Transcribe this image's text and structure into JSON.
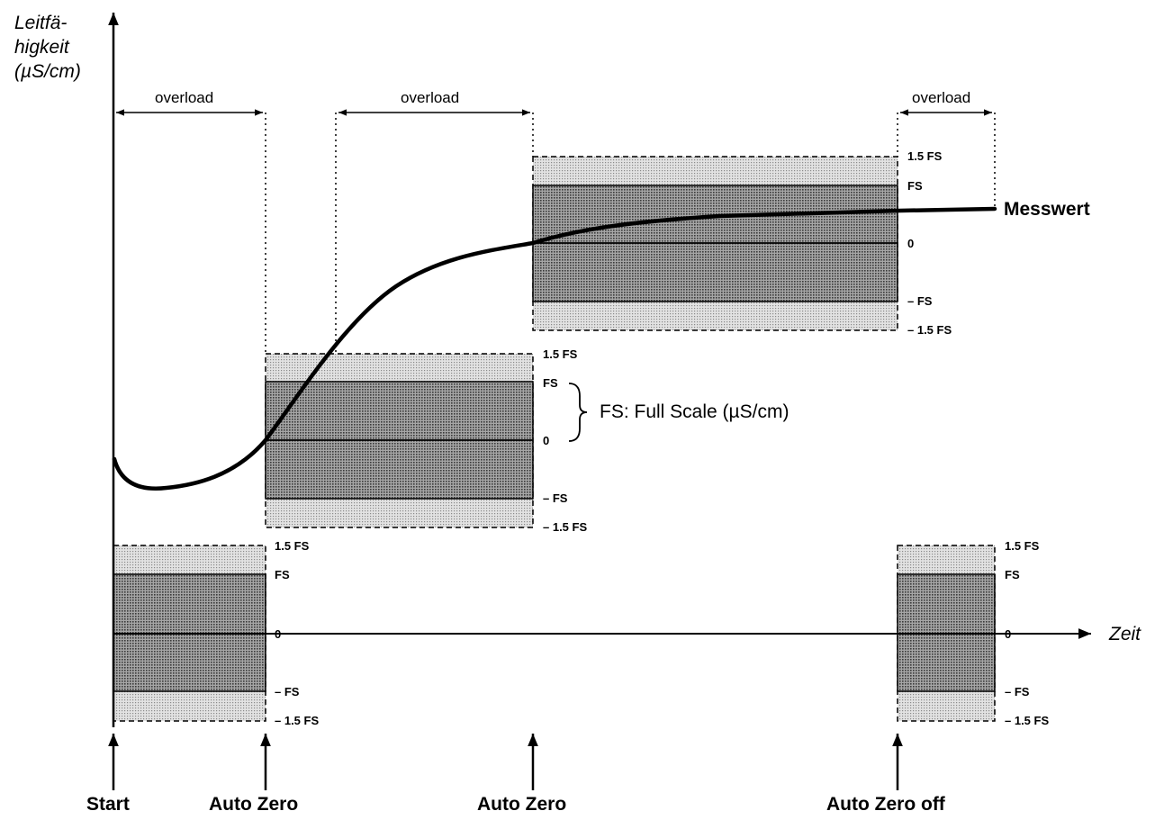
{
  "y_axis_title": [
    "Leitfä-",
    "higkeit",
    "(µS/cm)"
  ],
  "x_axis_label": "Zeit",
  "overload_labels": [
    "overload",
    "overload",
    "overload"
  ],
  "measured_value_label": "Messwert",
  "fs_note": "FS:  Full Scale (µS/cm)",
  "range_labels": {
    "plus_1_5": "1.5 FS",
    "plus_fs": "FS",
    "zero": "0",
    "minus_fs": "– FS",
    "minus_1_5": "– 1.5 FS"
  },
  "events": [
    "Start",
    "Auto Zero",
    "Auto Zero",
    "Auto Zero off"
  ],
  "colors": {
    "line": "#000000",
    "inner_band": "#8e8e8e",
    "outer_band": "#cdcdcd"
  }
}
